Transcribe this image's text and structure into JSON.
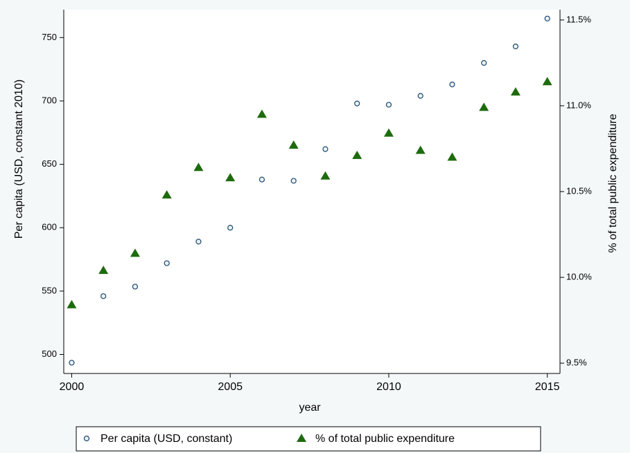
{
  "chart_data": {
    "type": "scatter",
    "x_label": "year",
    "y_label": "Per capita (USD, constant 2010)",
    "y2_label": "% of total public expenditure",
    "x": [
      2000,
      2001,
      2002,
      2003,
      2004,
      2005,
      2006,
      2007,
      2008,
      2009,
      2010,
      2011,
      2012,
      2013,
      2014,
      2015
    ],
    "series": [
      {
        "name": "Per capita (USD, constant)",
        "color": "#1a476f",
        "marker": "circle",
        "values": [
          493.5,
          546,
          553.5,
          572,
          589,
          600,
          638,
          637,
          662,
          698,
          697,
          704,
          713,
          730,
          743,
          765
        ]
      },
      {
        "name": "% of total public expenditure",
        "color": "#1e6b0e",
        "marker": "triangle",
        "axis": "y2",
        "values": [
          9.84,
          10.04,
          10.14,
          10.48,
          10.64,
          10.58,
          10.95,
          10.77,
          10.59,
          10.71,
          10.84,
          10.74,
          10.7,
          10.99,
          11.08,
          11.14
        ]
      }
    ],
    "xlim": [
      1999.75,
      2015.4
    ],
    "xticks": [
      2000,
      2005,
      2010,
      2015
    ],
    "ylim": [
      485,
      772
    ],
    "yticks": [
      500,
      550,
      600,
      650,
      700,
      750
    ],
    "y2lim": [
      9.44,
      11.56
    ],
    "y2ticks": [
      {
        "value": 9.5,
        "label": "9.5%"
      },
      {
        "value": 10.0,
        "label": "10.0%"
      },
      {
        "value": 10.5,
        "label": "10.5%"
      },
      {
        "value": 11.0,
        "label": "11.0%"
      },
      {
        "value": 11.5,
        "label": "11.5%"
      }
    ],
    "legend": "bottom"
  }
}
